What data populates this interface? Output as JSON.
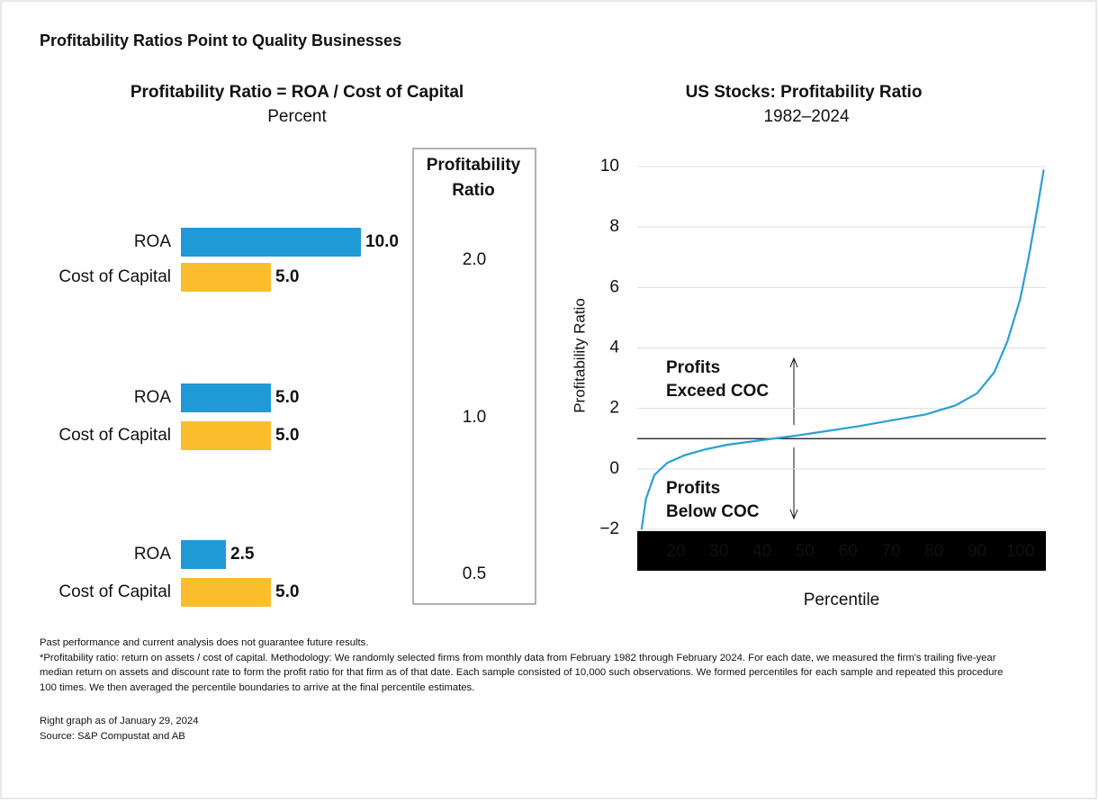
{
  "title": "Profitability Ratios Point to Quality Businesses",
  "chart_data": [
    {
      "type": "barh",
      "title": "Profitability Ratio = ROA / Cost of Capital",
      "subtitle": "Percent",
      "categories": [
        "ROA",
        "Cost of Capital",
        "ROA",
        "Cost of Capital",
        "ROA",
        "Cost of Capital"
      ],
      "values": [
        10,
        5,
        5,
        5,
        2.5,
        5
      ],
      "value_labels": [
        "10.0",
        "5.0",
        "5.0",
        "5.0",
        "2.5",
        "5.0"
      ],
      "colors": [
        "#1f9ad6",
        "#fbbd2c",
        "#1f9ad6",
        "#fbbd2c",
        "#1f9ad6",
        "#fbbd2c"
      ],
      "xlim": [
        0,
        10
      ],
      "ratio_title": [
        "Profitability",
        "Ratio"
      ],
      "ratios": [
        2,
        1,
        0.5
      ],
      "ratio_labels": [
        "2.0",
        "1.0",
        "0.5"
      ]
    },
    {
      "type": "line",
      "title": "US Stocks: Profitability Ratio",
      "subtitle": "1982–2024",
      "ylabel": "Profitability Ratio",
      "xlabel": "Percentile",
      "x": [
        12,
        13,
        15,
        18,
        22,
        27,
        32,
        40,
        48,
        55,
        62,
        70,
        78,
        85,
        90,
        94,
        97,
        100,
        102,
        104,
        105.5
      ],
      "values": [
        -2,
        -1,
        -0.2,
        0.2,
        0.45,
        0.65,
        0.8,
        0.95,
        1.1,
        1.25,
        1.4,
        1.6,
        1.8,
        2.1,
        2.5,
        3.2,
        4.2,
        5.6,
        7,
        8.6,
        9.9
      ],
      "color": "#2a9fd6",
      "xlim": [
        11,
        106
      ],
      "ylim": [
        -2,
        10
      ],
      "xticks": [
        20,
        30,
        40,
        50,
        60,
        70,
        80,
        90,
        100
      ],
      "yticks": [
        {
          "value": -2,
          "label": "−2"
        },
        0,
        2,
        4,
        6,
        8,
        10
      ],
      "grid": true,
      "reference_line": 1,
      "annotations": [
        [
          "Profits",
          "Exceed COC"
        ],
        [
          "Profits",
          "Below COC"
        ]
      ]
    }
  ],
  "notes": [
    "Past performance and current analysis does not guarantee future results.",
    "*Profitability ratio: return on assets / cost of capital. Methodology:  We randomly selected firms from monthly data from February 1982 through February 2024. For each date, we measured the firm's trailing five-year",
    "median return on assets and discount rate to form the profit ratio for that firm as of that date. Each sample consisted of 10,000 such observations. We formed percentiles for each sample and repeated this procedure",
    "100 times.  We then averaged the percentile boundaries to arrive at the final percentile estimates.",
    "Right graph as of January 29, 2024",
    "Source: S&P Compustat and AB"
  ]
}
